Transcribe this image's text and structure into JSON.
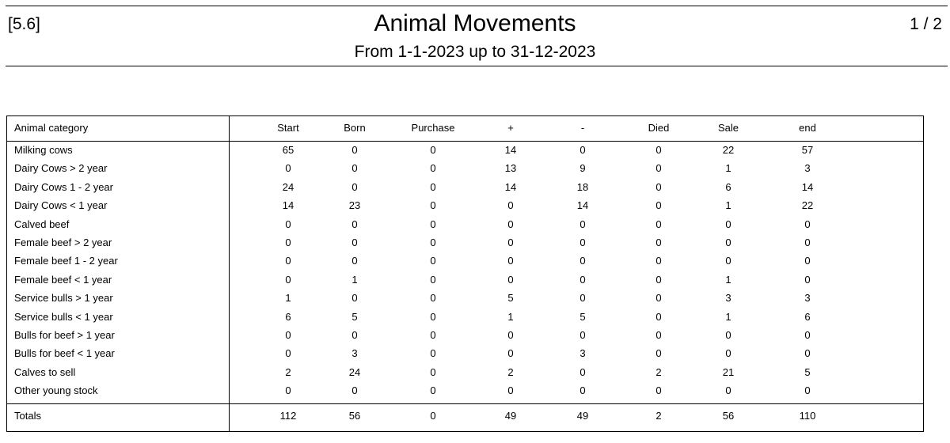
{
  "header": {
    "code": "[5.6]",
    "title": "Animal Movements",
    "subtitle": "From 1-1-2023 up to 31-12-2023",
    "page": "1 / 2"
  },
  "table": {
    "columns": [
      "Animal category",
      "Start",
      "Born",
      "Purchase",
      "+",
      "-",
      "Died",
      "Sale",
      "end"
    ],
    "rows": [
      {
        "name": "Milking cows",
        "values": [
          "65",
          "0",
          "0",
          "14",
          "0",
          "0",
          "22",
          "57"
        ]
      },
      {
        "name": "Dairy Cows > 2 year",
        "values": [
          "0",
          "0",
          "0",
          "13",
          "9",
          "0",
          "1",
          "3"
        ]
      },
      {
        "name": "Dairy Cows 1 - 2 year",
        "values": [
          "24",
          "0",
          "0",
          "14",
          "18",
          "0",
          "6",
          "14"
        ]
      },
      {
        "name": "Dairy Cows < 1 year",
        "values": [
          "14",
          "23",
          "0",
          "0",
          "14",
          "0",
          "1",
          "22"
        ]
      },
      {
        "name": "Calved beef",
        "values": [
          "0",
          "0",
          "0",
          "0",
          "0",
          "0",
          "0",
          "0"
        ]
      },
      {
        "name": "Female beef > 2 year",
        "values": [
          "0",
          "0",
          "0",
          "0",
          "0",
          "0",
          "0",
          "0"
        ]
      },
      {
        "name": "Female beef 1 - 2 year",
        "values": [
          "0",
          "0",
          "0",
          "0",
          "0",
          "0",
          "0",
          "0"
        ]
      },
      {
        "name": "Female beef < 1 year",
        "values": [
          "0",
          "1",
          "0",
          "0",
          "0",
          "0",
          "1",
          "0"
        ]
      },
      {
        "name": "Service bulls > 1 year",
        "values": [
          "1",
          "0",
          "0",
          "5",
          "0",
          "0",
          "3",
          "3"
        ]
      },
      {
        "name": "Service bulls < 1 year",
        "values": [
          "6",
          "5",
          "0",
          "1",
          "5",
          "0",
          "1",
          "6"
        ]
      },
      {
        "name": "Bulls for beef > 1 year",
        "values": [
          "0",
          "0",
          "0",
          "0",
          "0",
          "0",
          "0",
          "0"
        ]
      },
      {
        "name": "Bulls for beef < 1 year",
        "values": [
          "0",
          "3",
          "0",
          "0",
          "3",
          "0",
          "0",
          "0"
        ]
      },
      {
        "name": "Calves to sell",
        "values": [
          "2",
          "24",
          "0",
          "2",
          "0",
          "2",
          "21",
          "5"
        ]
      },
      {
        "name": "Other young stock",
        "values": [
          "0",
          "0",
          "0",
          "0",
          "0",
          "0",
          "0",
          "0"
        ]
      }
    ],
    "totals": {
      "name": "Totals",
      "values": [
        "112",
        "56",
        "0",
        "49",
        "49",
        "2",
        "56",
        "110"
      ]
    }
  }
}
